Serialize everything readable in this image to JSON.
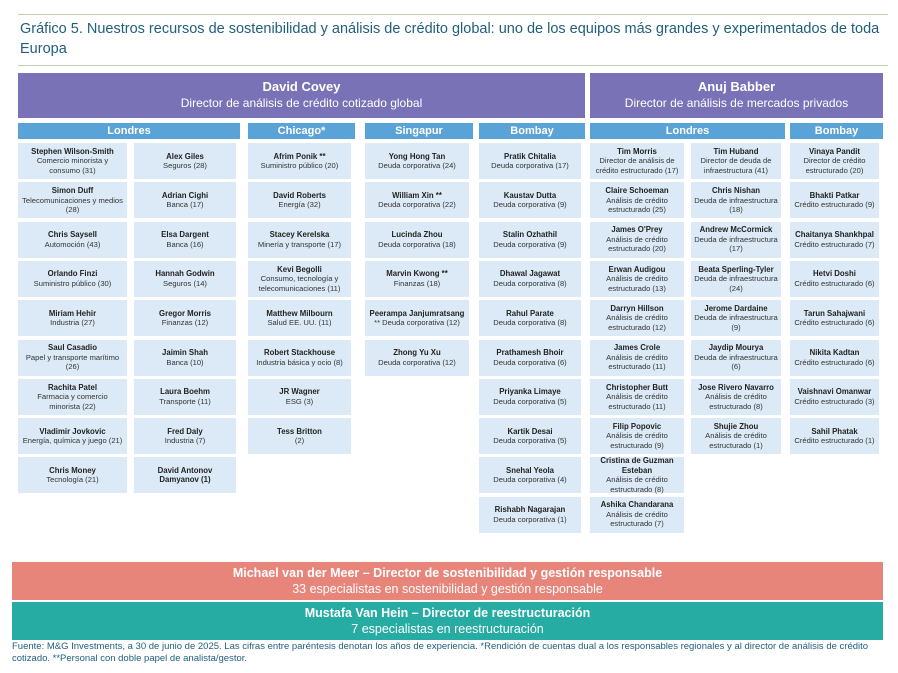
{
  "header": {
    "title": "Gráfico 5. Nuestros recursos de sostenibilidad y análisis de crédito global: uno de los equipos más grandes y experimentados de toda Europa"
  },
  "sections": [
    {
      "name": "David Covey",
      "role": "Director de análisis de crédito cotizado global",
      "regions": [
        {
          "name": "Londres",
          "columns": [
            [
              {
                "name": "Stephen Wilson-Smith",
                "detail": "Comercio minorista y consumo (31)"
              },
              {
                "name": "Simon Duff",
                "detail": "Telecomunicaciones y medios (28)"
              },
              {
                "name": "Chris Saysell",
                "detail": "Automoción (43)"
              },
              {
                "name": "Orlando Finzi",
                "detail": "Suministro público (30)"
              },
              {
                "name": "Miriam Hehir",
                "detail": "Industria (27)"
              },
              {
                "name": "Saul Casadio",
                "detail": "Papel y transporte marítimo (26)"
              },
              {
                "name": "Rachita Patel",
                "detail": "Farmacia y comercio minorista (22)"
              },
              {
                "name": "Vladimir Jovkovic",
                "detail": "Energía, química y juego (21)"
              },
              {
                "name": "Chris Money",
                "detail": "Tecnología (21)"
              }
            ],
            [
              {
                "name": "Alex Giles",
                "detail": "Seguros (28)"
              },
              {
                "name": "Adrian Cighi",
                "detail": "Banca (17)"
              },
              {
                "name": "Elsa Dargent",
                "detail": "Banca (16)"
              },
              {
                "name": "Hannah Godwin",
                "detail": "Seguros (14)"
              },
              {
                "name": "Gregor Morris",
                "detail": "Finanzas (12)"
              },
              {
                "name": "Jaimin Shah",
                "detail": "Banca (10)"
              },
              {
                "name": "Laura Boehm",
                "detail": "Transporte (11)"
              },
              {
                "name": "Fred Daly",
                "detail": "Industria (7)"
              },
              {
                "name": "David Antonov Damyanov (1)"
              }
            ]
          ]
        },
        {
          "name": "Chicago*",
          "columns": [
            [
              {
                "name": "Afrim Ponik **",
                "detail": "Suministro público (20)"
              },
              {
                "name": "David Roberts",
                "detail": "Energía (32)"
              },
              {
                "name": "Stacey Kerelska",
                "detail": "Minería y transporte (17)"
              },
              {
                "name": "Kevi Begolli",
                "detail": "Consumo, tecnología y telecomunicaciones (11)"
              },
              {
                "name": "Matthew Milbourn",
                "detail": "Salud EE. UU. (11)"
              },
              {
                "name": "Robert Stackhouse",
                "detail": "Industria básica y ocio (8)"
              },
              {
                "name": "JR Wagner",
                "detail": "ESG (3)"
              },
              {
                "name": "Tess Britton",
                "detail": "(2)"
              }
            ]
          ]
        },
        {
          "name": "Singapur",
          "columns": [
            [
              {
                "name": "Yong Hong Tan",
                "detail": "Deuda corporativa (24)"
              },
              {
                "name": "William Xin **",
                "detail": "Deuda corporativa (22)"
              },
              {
                "name": "Lucinda Zhou",
                "detail": "Deuda corporativa (18)"
              },
              {
                "name": "Marvin Kwong **",
                "detail": "Finanzas (18)"
              },
              {
                "name": "Peerampa Janjumratsang",
                "detail": "** Deuda corporativa (12)"
              },
              {
                "name": "Zhong Yu Xu",
                "detail": "Deuda corporativa (12)"
              }
            ]
          ]
        },
        {
          "name": "Bombay",
          "columns": [
            [
              {
                "name": "Pratik Chitalia",
                "detail": "Deuda corporativa (17)"
              },
              {
                "name": "Kaustav Dutta",
                "detail": "Deuda corporativa (9)"
              },
              {
                "name": "Stalin Ozhathil",
                "detail": "Deuda corporativa (9)"
              },
              {
                "name": "Dhawal Jagawat",
                "detail": "Deuda corporativa (8)"
              },
              {
                "name": "Rahul Parate",
                "detail": "Deuda corporativa (8)"
              },
              {
                "name": "Prathamesh Bhoir",
                "detail": "Deuda corporativa (6)"
              },
              {
                "name": "Priyanka Limaye",
                "detail": "Deuda corporativa (5)"
              },
              {
                "name": "Kartik Desai",
                "detail": "Deuda corporativa (5)"
              },
              {
                "name": "Snehal Yeola",
                "detail": "Deuda corporativa (4)"
              },
              {
                "name": "Rishabh Nagarajan",
                "detail": "Deuda corporativa (1)"
              }
            ]
          ]
        }
      ]
    },
    {
      "name": "Anuj Babber",
      "role": "Director de análisis de mercados privados",
      "regions": [
        {
          "name": "Londres",
          "columns": [
            [
              {
                "name": "Tim Morris",
                "detail": "Director de análisis de crédito estructurado (17)"
              },
              {
                "name": "Claire Schoeman",
                "detail": "Análisis de crédito estructurado (25)"
              },
              {
                "name": "James O'Prey",
                "detail": "Análisis de crédito estructurado (20)"
              },
              {
                "name": "Erwan Audigou",
                "detail": "Análisis de crédito estructurado (13)"
              },
              {
                "name": "Darryn Hillson",
                "detail": "Análisis de crédito estructurado (12)"
              },
              {
                "name": "James Crole",
                "detail": "Análisis de crédito estructurado (11)"
              },
              {
                "name": "Christopher Butt",
                "detail": "Análisis de crédito estructurado (11)"
              },
              {
                "name": "Filip Popovic",
                "detail": "Análisis de crédito estructurado (9)"
              },
              {
                "name": "Cristina de Guzman Esteban",
                "detail": "Análisis de crédito estructurado (8)"
              },
              {
                "name": "Ashika Chandarana",
                "detail": "Análisis de crédito estructurado (7)"
              }
            ],
            [
              {
                "name": "Tim Huband",
                "detail": "Director de deuda de infraestructura (41)"
              },
              {
                "name": "Chris Nishan",
                "detail": "Deuda de infraestructura (18)"
              },
              {
                "name": "Andrew McCormick",
                "detail": "Deuda de infraestructura (17)"
              },
              {
                "name": "Beata Sperling-Tyler",
                "detail": "Deuda de infraestructura (24)"
              },
              {
                "name": "Jerome Dardaine",
                "detail": "Deuda de infraestructura (9)"
              },
              {
                "name": "Jaydip Mourya",
                "detail": "Deuda de infraestructura (6)"
              },
              {
                "name": "Jose Rivero Navarro",
                "detail": "Análisis de crédito estructurado (8)"
              },
              {
                "name": "Shujie Zhou",
                "detail": "Análisis de crédito estructurado (1)"
              }
            ]
          ]
        },
        {
          "name": "Bombay",
          "columns": [
            [
              {
                "name": "Vinaya Pandit",
                "detail": "Director de crédito estructurado (20)"
              },
              {
                "name": "Bhakti Patkar",
                "detail": "Crédito estructurado (9)"
              },
              {
                "name": "Chaitanya Shankhpal",
                "detail": "Crédito estructurado (7)"
              },
              {
                "name": "Hetvi Doshi",
                "detail": "Crédito estructurado (6)"
              },
              {
                "name": "Tarun Sahajwani",
                "detail": "Crédito estructurado (6)"
              },
              {
                "name": "Nikita Kadtan",
                "detail": "Crédito estructurado (6)"
              },
              {
                "name": "Vaishnavi Omanwar",
                "detail": "Crédito estructurado (3)"
              },
              {
                "name": "Sahil Phatak",
                "detail": "Crédito estructurado (1)"
              }
            ]
          ]
        }
      ]
    }
  ],
  "bands": [
    {
      "title": "Michael van der Meer – Director de sostenibilidad y gestión responsable",
      "subtitle": "33 especialistas en sostenibilidad y gestión responsable"
    },
    {
      "title": "Mustafa Van Hein – Director de reestructuración",
      "subtitle": "7 especialistas en reestructuración"
    }
  ],
  "footer": "Fuente: M&G Investments, a 30 de junio de 2025. Las cifras entre paréntesis denotan los años de experiencia. *Rendición de cuentas dual a los responsables regionales y al director de análisis de crédito cotizado. **Personal con doble papel de analista/gestor."
}
